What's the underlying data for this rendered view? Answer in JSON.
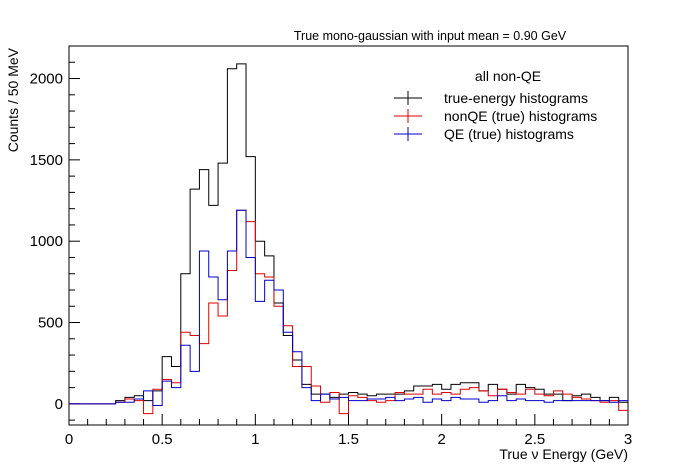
{
  "chart_data": {
    "type": "histogram",
    "title": "True mono-gaussian with input mean = 0.90 GeV",
    "xlabel": "True ν Energy (GeV)",
    "ylabel": "Counts / 50 MeV",
    "xlim": [
      0,
      3
    ],
    "ylim": [
      -130,
      2200
    ],
    "xticks": [
      0,
      0.5,
      1,
      1.5,
      2,
      2.5,
      3
    ],
    "xtick_labels": [
      "0",
      "0.5",
      "1",
      "1.5",
      "2",
      "2.5",
      "3"
    ],
    "yticks": [
      0,
      500,
      1000,
      1500,
      2000
    ],
    "ytick_labels": [
      "0",
      "500",
      "1000",
      "1500",
      "2000"
    ],
    "bin_width": 0.05,
    "bin_edges_start": 0,
    "legend": {
      "header": "all non-QE",
      "position": "top-right"
    },
    "series": [
      {
        "name": "true-energy histograms",
        "color": "#000000",
        "values": [
          0,
          0,
          0,
          0,
          0,
          20,
          40,
          50,
          20,
          80,
          290,
          230,
          800,
          1320,
          1440,
          1220,
          1480,
          2060,
          2090,
          1520,
          1000,
          910,
          620,
          420,
          270,
          120,
          60,
          60,
          40,
          60,
          70,
          60,
          50,
          60,
          60,
          60,
          80,
          110,
          110,
          120,
          90,
          120,
          130,
          130,
          80,
          120,
          90,
          60,
          120,
          100,
          90,
          60,
          60,
          20,
          50,
          60,
          40,
          20,
          40,
          10
        ]
      },
      {
        "name": "nonQE (true) histograms",
        "color": "#dd0000",
        "values": [
          0,
          0,
          0,
          0,
          0,
          10,
          30,
          20,
          -60,
          90,
          150,
          130,
          440,
          420,
          370,
          620,
          540,
          820,
          1190,
          1120,
          800,
          780,
          600,
          480,
          230,
          230,
          110,
          10,
          70,
          -60,
          50,
          40,
          20,
          10,
          20,
          70,
          60,
          60,
          90,
          60,
          70,
          60,
          90,
          100,
          80,
          50,
          90,
          70,
          60,
          90,
          60,
          50,
          80,
          60,
          40,
          30,
          20,
          10,
          20,
          -40
        ]
      },
      {
        "name": "QE (true) histograms",
        "color": "#0000cc",
        "values": [
          0,
          0,
          0,
          0,
          0,
          10,
          10,
          30,
          80,
          -10,
          140,
          100,
          360,
          200,
          940,
          780,
          640,
          940,
          1190,
          900,
          630,
          760,
          700,
          440,
          320,
          100,
          20,
          60,
          30,
          40,
          20,
          20,
          30,
          30,
          40,
          20,
          30,
          40,
          10,
          30,
          20,
          40,
          30,
          30,
          10,
          20,
          50,
          20,
          30,
          20,
          20,
          10,
          20,
          20,
          20,
          20,
          20,
          20,
          10,
          20
        ]
      }
    ]
  }
}
